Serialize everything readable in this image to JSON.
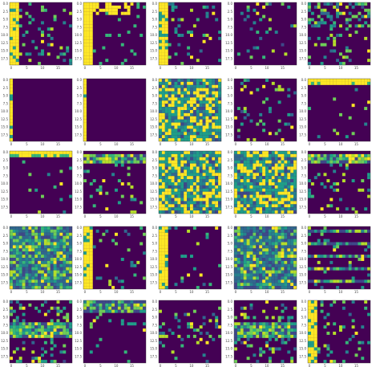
{
  "chart_data": {
    "type": "heatmap",
    "grid": {
      "rows": 5,
      "cols": 5
    },
    "colormap": {
      "name": "viridis",
      "low": "#440154",
      "mid": "#21918c",
      "high": "#fde725"
    },
    "matrix_size": 20,
    "xticks": [
      "0",
      "5",
      "10",
      "15"
    ],
    "yticks": [
      "0.0",
      "2.5",
      "5.0",
      "7.5",
      "10.0",
      "12.5",
      "15.0",
      "17.5"
    ],
    "panels": [
      {
        "row": 0,
        "col": 0,
        "pattern": "sparse-left",
        "density": 0.12,
        "seed": 11
      },
      {
        "row": 0,
        "col": 1,
        "pattern": "left-band-top-lines",
        "density": 0.18,
        "seed": 12
      },
      {
        "row": 0,
        "col": 2,
        "pattern": "left-band",
        "density": 0.12,
        "seed": 13
      },
      {
        "row": 0,
        "col": 3,
        "pattern": "sparse",
        "density": 0.08,
        "seed": 14
      },
      {
        "row": 0,
        "col": 4,
        "pattern": "noisy-top",
        "density": 0.22,
        "seed": 15
      },
      {
        "row": 1,
        "col": 0,
        "pattern": "thin-left",
        "density": 0.04,
        "seed": 21
      },
      {
        "row": 1,
        "col": 1,
        "pattern": "thin-left",
        "density": 0.05,
        "seed": 22
      },
      {
        "row": 1,
        "col": 2,
        "pattern": "dense",
        "density": 0.6,
        "seed": 23
      },
      {
        "row": 1,
        "col": 3,
        "pattern": "sparse-top",
        "density": 0.09,
        "seed": 24
      },
      {
        "row": 1,
        "col": 4,
        "pattern": "top-stripe",
        "density": 0.04,
        "seed": 25
      },
      {
        "row": 2,
        "col": 0,
        "pattern": "top-stripe",
        "density": 0.03,
        "seed": 31
      },
      {
        "row": 2,
        "col": 1,
        "pattern": "top-band",
        "density": 0.1,
        "seed": 32
      },
      {
        "row": 2,
        "col": 2,
        "pattern": "dense",
        "density": 0.65,
        "seed": 33
      },
      {
        "row": 2,
        "col": 3,
        "pattern": "dense",
        "density": 0.65,
        "seed": 34
      },
      {
        "row": 2,
        "col": 4,
        "pattern": "top-band",
        "density": 0.12,
        "seed": 35
      },
      {
        "row": 3,
        "col": 0,
        "pattern": "dense-soft",
        "density": 0.55,
        "seed": 41
      },
      {
        "row": 3,
        "col": 1,
        "pattern": "sparse-left",
        "density": 0.12,
        "seed": 42
      },
      {
        "row": 3,
        "col": 2,
        "pattern": "sparse-left",
        "density": 0.06,
        "seed": 43
      },
      {
        "row": 3,
        "col": 3,
        "pattern": "dense-soft",
        "density": 0.48,
        "seed": 44
      },
      {
        "row": 3,
        "col": 4,
        "pattern": "horizontal-lines",
        "density": 0.1,
        "seed": 45
      },
      {
        "row": 4,
        "col": 0,
        "pattern": "mid-band",
        "density": 0.18,
        "seed": 51
      },
      {
        "row": 4,
        "col": 1,
        "pattern": "top-lines",
        "density": 0.07,
        "seed": 52
      },
      {
        "row": 4,
        "col": 2,
        "pattern": "mid-sparse",
        "density": 0.12,
        "seed": 53
      },
      {
        "row": 4,
        "col": 3,
        "pattern": "mid-band",
        "density": 0.2,
        "seed": 54
      },
      {
        "row": 4,
        "col": 4,
        "pattern": "left-band",
        "density": 0.12,
        "seed": 55
      }
    ]
  }
}
